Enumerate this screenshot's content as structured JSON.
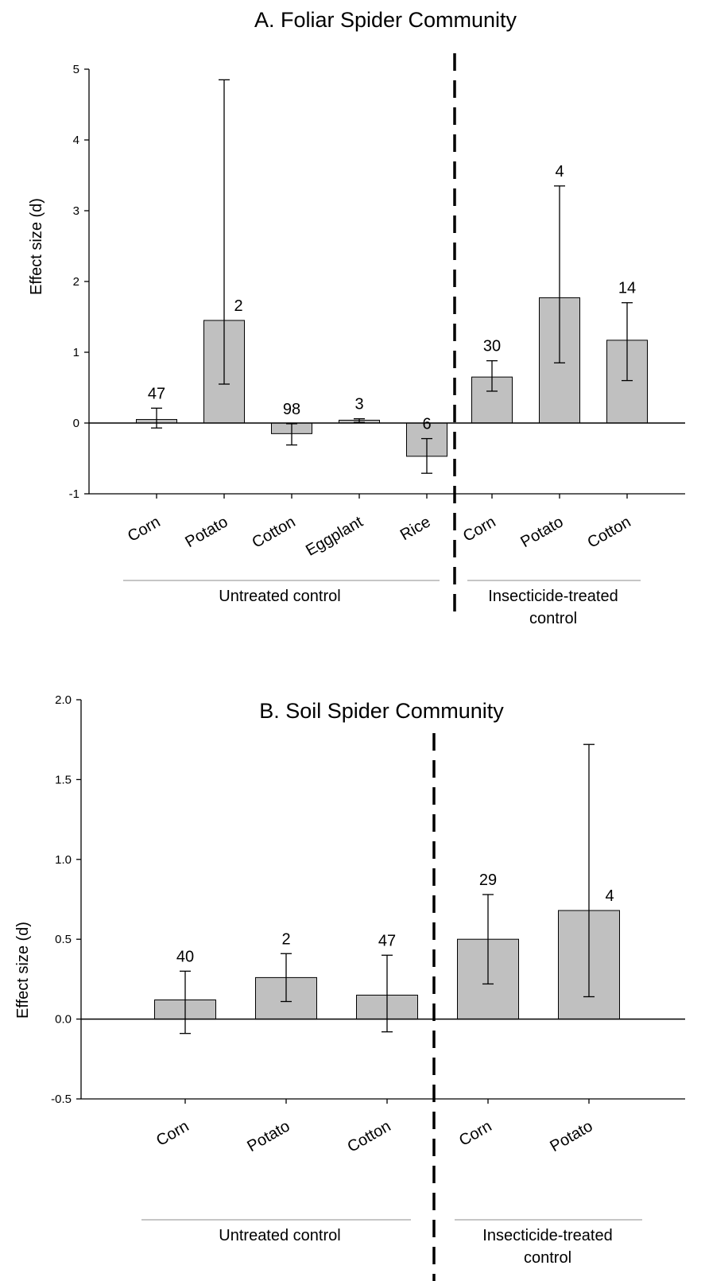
{
  "chart_data": [
    {
      "type": "bar",
      "title": "A. Foliar Spider Community",
      "ylabel": "Effect size (d)",
      "xlabel": "",
      "ylim": [
        -1,
        5
      ],
      "yticks": [
        "-1",
        "0",
        "1",
        "2",
        "3",
        "4",
        "5"
      ],
      "categories": [
        "Corn",
        "Potato",
        "Cotton",
        "Eggplant",
        "Rice",
        "Corn",
        "Potato",
        "Cotton"
      ],
      "values": [
        0.05,
        1.45,
        -0.15,
        0.04,
        -0.47,
        0.65,
        1.77,
        1.17
      ],
      "error_low": [
        -0.07,
        0.55,
        -0.31,
        0.01,
        -0.71,
        0.45,
        0.85,
        0.6
      ],
      "error_high": [
        0.21,
        4.85,
        -0.01,
        0.06,
        -0.22,
        0.88,
        3.35,
        1.7
      ],
      "n_labels": [
        "47",
        "2",
        "98",
        "3",
        "6",
        "30",
        "4",
        "14"
      ],
      "groups": [
        {
          "label": "Untreated control",
          "members": [
            0,
            1,
            2,
            3,
            4
          ]
        },
        {
          "label": "Insecticide-treated control",
          "members": [
            5,
            6,
            7
          ]
        }
      ]
    },
    {
      "type": "bar",
      "title": "B. Soil Spider Community",
      "ylabel": "Effect size (d)",
      "xlabel": "",
      "ylim": [
        -0.5,
        2.0
      ],
      "yticks": [
        "-0.5",
        "0.0",
        "0.5",
        "1.0",
        "1.5",
        "2.0"
      ],
      "categories": [
        "Corn",
        "Potato",
        "Cotton",
        "Corn",
        "Potato"
      ],
      "values": [
        0.12,
        0.26,
        0.15,
        0.5,
        0.68
      ],
      "error_low": [
        -0.09,
        0.11,
        -0.08,
        0.22,
        0.14
      ],
      "error_high": [
        0.3,
        0.41,
        0.4,
        0.78,
        1.72
      ],
      "n_labels": [
        "40",
        "2",
        "47",
        "29",
        "4"
      ],
      "groups": [
        {
          "label": "Untreated control",
          "members": [
            0,
            1,
            2
          ]
        },
        {
          "label": "Insecticide-treated control",
          "members": [
            3,
            4
          ]
        }
      ]
    }
  ]
}
